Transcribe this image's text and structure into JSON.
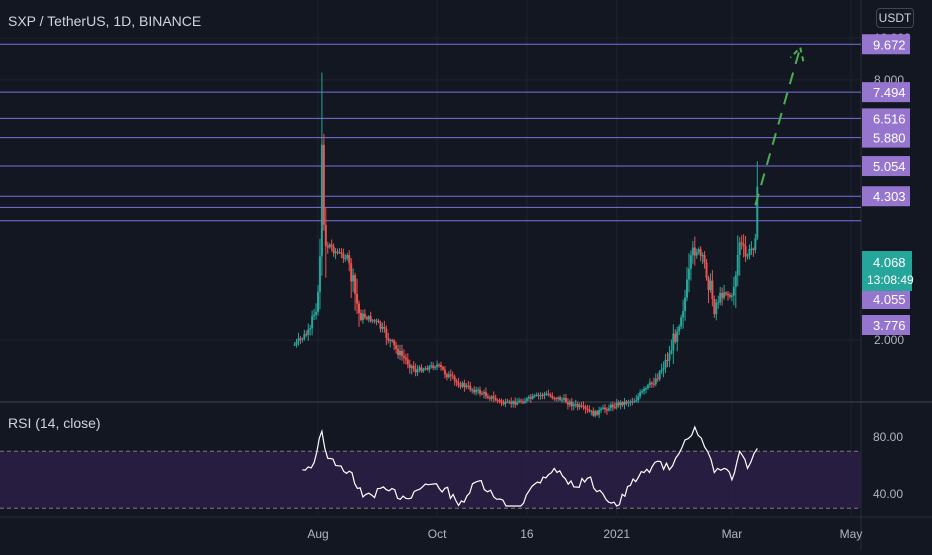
{
  "header": {
    "symbol_title": "SXP / TetherUS, 1D, BINANCE",
    "currency_button": "USDT"
  },
  "rsi_header": "RSI (14, close)",
  "colors": {
    "background": "#131722",
    "up": "#26a69a",
    "down": "#ef5350",
    "level_line": "#7e6fe0",
    "level_label_bg": "#9575cd",
    "current_bg": "#26a69a",
    "arrow": "#4caf50",
    "rsi_line": "#ffffff",
    "rsi_band": "#2a1e45",
    "grid": "#1f2330",
    "text": "#d1d4dc",
    "axis_text": "#b2b5be"
  },
  "chart_data": [
    {
      "type": "candlestick",
      "title": "SXP / TetherUS, 1D, BINANCE",
      "yscale": "log",
      "ylim": [
        1.5,
        10.8
      ],
      "y_ticks": [
        "2.000",
        "8.000",
        "10.000"
      ],
      "x_ticks": [
        "Aug",
        "Oct",
        "16",
        "2021",
        "Mar",
        "May"
      ],
      "path_points": [
        [
          "Jul 20",
          1.95
        ],
        [
          "Jul 28",
          2.1
        ],
        [
          "Aug 1",
          2.6
        ],
        [
          "Aug 3",
          4.5
        ],
        [
          "Aug 5",
          3.4
        ],
        [
          "Aug 10",
          3.2
        ],
        [
          "Aug 16",
          3.1
        ],
        [
          "Aug 22",
          2.3
        ],
        [
          "Aug 31",
          2.2
        ],
        [
          "Sep 10",
          1.9
        ],
        [
          "Sep 20",
          1.7
        ],
        [
          "Oct 1",
          1.75
        ],
        [
          "Oct 10",
          1.6
        ],
        [
          "Oct 25",
          1.5
        ],
        [
          "Nov 5",
          1.42
        ],
        [
          "Nov 15",
          1.45
        ],
        [
          "Nov 25",
          1.5
        ],
        [
          "Dec 5",
          1.45
        ],
        [
          "Dec 20",
          1.35
        ],
        [
          "Jan 1",
          1.42
        ],
        [
          "Jan 10",
          1.45
        ],
        [
          "Jan 20",
          1.6
        ],
        [
          "Jan 28",
          1.85
        ],
        [
          "Feb 5",
          2.5
        ],
        [
          "Feb 10",
          3.3
        ],
        [
          "Feb 15",
          3.0
        ],
        [
          "Feb 20",
          2.4
        ],
        [
          "Feb 25",
          2.6
        ],
        [
          "Mar 1",
          2.5
        ],
        [
          "Mar 5",
          3.4
        ],
        [
          "Mar 8",
          3.1
        ],
        [
          "Mar 12",
          3.3
        ],
        [
          "Mar 14",
          4.068
        ]
      ],
      "levels": [
        {
          "label": "9.672",
          "value": 9.672
        },
        {
          "label": "7.494",
          "value": 7.494
        },
        {
          "label": "6.516",
          "value": 6.516
        },
        {
          "label": "5.880",
          "value": 5.88
        },
        {
          "label": "5.054",
          "value": 5.054
        },
        {
          "label": "4.303",
          "value": 4.303
        },
        {
          "label": "4.055",
          "value": 4.055
        },
        {
          "label": "3.776",
          "value": 3.776
        }
      ],
      "current_price": {
        "label": "4.068",
        "value": 4.068,
        "countdown": "13:08:49"
      },
      "projection": {
        "style": "dashed-arrow",
        "from": [
          "Mar 13",
          4.1
        ],
        "to": [
          "Apr 5",
          9.5
        ]
      }
    },
    {
      "type": "line",
      "title": "RSI (14, close)",
      "ylim": [
        25,
        90
      ],
      "y_ticks": [
        "80.00",
        "40.00"
      ],
      "bands": [
        30,
        70
      ],
      "path_points": [
        [
          "Jul 24",
          57
        ],
        [
          "Jul 30",
          62
        ],
        [
          "Aug 3",
          84
        ],
        [
          "Aug 6",
          65
        ],
        [
          "Aug 10",
          60
        ],
        [
          "Aug 17",
          56
        ],
        [
          "Aug 24",
          38
        ],
        [
          "Sep 5",
          43
        ],
        [
          "Sep 15",
          37
        ],
        [
          "Sep 25",
          47
        ],
        [
          "Oct 5",
          44
        ],
        [
          "Oct 12",
          32
        ],
        [
          "Oct 22",
          49
        ],
        [
          "Oct 30",
          38
        ],
        [
          "Nov 10",
          27
        ],
        [
          "Nov 20",
          47
        ],
        [
          "Nov 30",
          58
        ],
        [
          "Dec 10",
          45
        ],
        [
          "Dec 17",
          51
        ],
        [
          "Dec 25",
          40
        ],
        [
          "Jan 1",
          31
        ],
        [
          "Jan 8",
          46
        ],
        [
          "Jan 15",
          55
        ],
        [
          "Jan 22",
          63
        ],
        [
          "Jan 28",
          57
        ],
        [
          "Feb 5",
          78
        ],
        [
          "Feb 10",
          87
        ],
        [
          "Feb 15",
          73
        ],
        [
          "Feb 20",
          55
        ],
        [
          "Feb 25",
          58
        ],
        [
          "Mar 1",
          50
        ],
        [
          "Mar 5",
          70
        ],
        [
          "Mar 9",
          58
        ],
        [
          "Mar 14",
          72
        ]
      ]
    }
  ]
}
